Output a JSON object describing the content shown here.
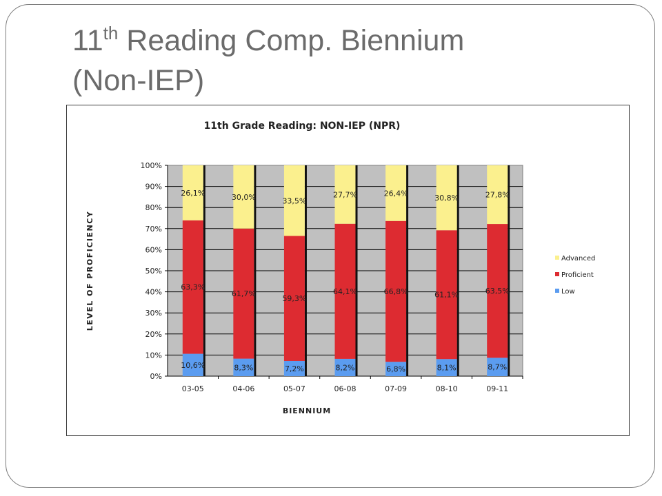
{
  "slide": {
    "title_main": "11",
    "title_sup": "th",
    "title_rest": " Reading Comp. Biennium",
    "title_line2": "(Non-IEP)"
  },
  "chart_data": {
    "type": "bar",
    "stacked": true,
    "percent_stacked": true,
    "title": "11th Grade Reading:  NON-IEP (NPR)",
    "xlabel": "BIENNIUM",
    "ylabel": "LEVEL OF PROFICIENCY",
    "ylim": [
      0,
      100
    ],
    "yticks": [
      "0%",
      "10%",
      "20%",
      "30%",
      "40%",
      "50%",
      "60%",
      "70%",
      "80%",
      "90%",
      "100%"
    ],
    "categories": [
      "03-05",
      "04-06",
      "05-07",
      "06-08",
      "07-09",
      "08-10",
      "09-11"
    ],
    "series": [
      {
        "name": "Low",
        "color": "#5b9cf0",
        "values": [
          10.6,
          8.3,
          7.2,
          8.2,
          6.8,
          8.1,
          8.7
        ],
        "labels": [
          "10,6%",
          "8,3%",
          "7,2%",
          "8,2%",
          "6,8%",
          "8,1%",
          "8,7%"
        ]
      },
      {
        "name": "Proficient",
        "color": "#dd2b31",
        "values": [
          63.3,
          61.7,
          59.3,
          64.1,
          66.8,
          61.1,
          63.5
        ],
        "labels": [
          "63,3%",
          "61,7%",
          "59,3%",
          "64,1%",
          "66,8%",
          "61,1%",
          "63,5%"
        ]
      },
      {
        "name": "Advanced",
        "color": "#fbf08e",
        "values": [
          26.1,
          30.0,
          33.5,
          27.7,
          26.4,
          30.8,
          27.8
        ],
        "labels": [
          "26,1%",
          "30,0%",
          "33,5%",
          "27,7%",
          "26,4%",
          "30,8%",
          "27,8%"
        ]
      }
    ],
    "legend": {
      "position": "right",
      "order": [
        "Advanced",
        "Proficient",
        "Low"
      ]
    },
    "plot_background": "#c0c0c0",
    "grid": true
  }
}
